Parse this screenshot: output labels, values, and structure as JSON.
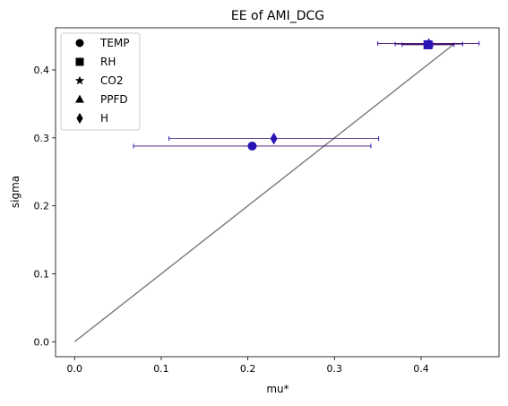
{
  "chart_data": {
    "type": "scatter",
    "title": "EE of AMI_DCG",
    "xlabel": "mu*",
    "ylabel": "sigma",
    "xlim": [
      -0.022,
      0.49
    ],
    "ylim": [
      -0.022,
      0.462
    ],
    "xticks": [
      0.0,
      0.1,
      0.2,
      0.3,
      0.4
    ],
    "yticks": [
      0.0,
      0.1,
      0.2,
      0.3,
      0.4
    ],
    "xtick_labels": [
      "0.0",
      "0.1",
      "0.2",
      "0.3",
      "0.4"
    ],
    "ytick_labels": [
      "0.0",
      "0.1",
      "0.2",
      "0.3",
      "0.4"
    ],
    "grid": false,
    "legend_position": "top-left",
    "marker_color": "#2a14b4",
    "errorbar_color": "#2a14b4",
    "reference_line": {
      "x": [
        0.0,
        0.438
      ],
      "y": [
        0.0,
        0.438
      ],
      "color": "#808080"
    },
    "series": [
      {
        "name": "TEMP",
        "marker": "circle",
        "x": 0.205,
        "y": 0.288,
        "xerr": [
          0.068,
          0.342
        ]
      },
      {
        "name": "RH",
        "marker": "square",
        "x": 0.408,
        "y": 0.437,
        "xerr": [
          0.378,
          0.438
        ]
      },
      {
        "name": "CO2",
        "marker": "star",
        "x": 0.409,
        "y": 0.438,
        "xerr": [
          0.37,
          0.448
        ]
      },
      {
        "name": "PPFD",
        "marker": "triangle",
        "x": 0.409,
        "y": 0.439,
        "xerr": [
          0.35,
          0.467
        ]
      },
      {
        "name": "H",
        "marker": "diamond",
        "x": 0.23,
        "y": 0.299,
        "xerr": [
          0.109,
          0.351
        ]
      }
    ]
  }
}
